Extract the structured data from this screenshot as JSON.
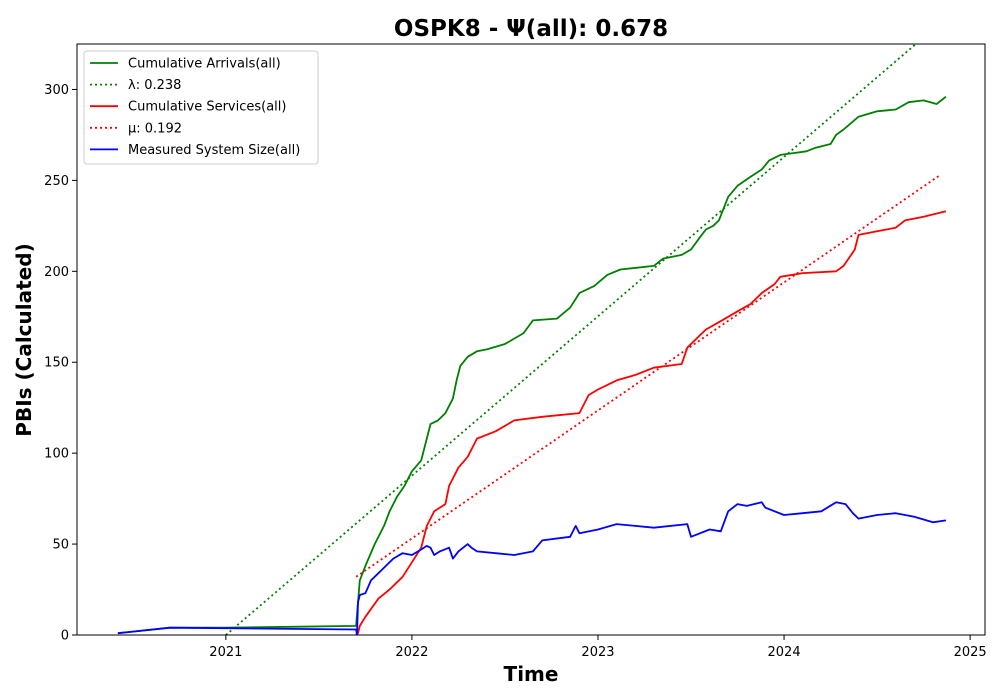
{
  "chart_data": {
    "type": "line",
    "title": "OSPK8 -  Ψ(all): 0.678",
    "xlabel": "Time",
    "ylabel": "PBIs (Calculated)",
    "xlim": [
      2020.2,
      2025.08
    ],
    "ylim": [
      0,
      325
    ],
    "x_ticks": [
      2021,
      2022,
      2023,
      2024,
      2025
    ],
    "x_tick_labels": [
      "2021",
      "2022",
      "2023",
      "2024",
      "2025"
    ],
    "y_ticks": [
      0,
      50,
      100,
      150,
      200,
      250,
      300
    ],
    "y_tick_labels": [
      "0",
      "50",
      "100",
      "150",
      "200",
      "250",
      "300"
    ],
    "legend_position": "upper-left",
    "grid": false,
    "series": [
      {
        "name": "Cumulative Arrivals(all)",
        "color": "#008000",
        "style": "solid",
        "points": [
          [
            2020.42,
            1
          ],
          [
            2020.7,
            4
          ],
          [
            2021.0,
            4
          ],
          [
            2021.7,
            5
          ],
          [
            2021.71,
            18
          ],
          [
            2021.72,
            30
          ],
          [
            2021.75,
            38
          ],
          [
            2021.8,
            50
          ],
          [
            2021.85,
            60
          ],
          [
            2021.88,
            68
          ],
          [
            2021.92,
            76
          ],
          [
            2021.96,
            82
          ],
          [
            2022.0,
            90
          ],
          [
            2022.05,
            96
          ],
          [
            2022.08,
            108
          ],
          [
            2022.1,
            116
          ],
          [
            2022.14,
            118
          ],
          [
            2022.18,
            122
          ],
          [
            2022.22,
            130
          ],
          [
            2022.24,
            140
          ],
          [
            2022.26,
            148
          ],
          [
            2022.3,
            153
          ],
          [
            2022.35,
            156
          ],
          [
            2022.4,
            157
          ],
          [
            2022.5,
            160
          ],
          [
            2022.6,
            166
          ],
          [
            2022.65,
            173
          ],
          [
            2022.78,
            174
          ],
          [
            2022.85,
            180
          ],
          [
            2022.9,
            188
          ],
          [
            2022.98,
            192
          ],
          [
            2023.05,
            198
          ],
          [
            2023.12,
            201
          ],
          [
            2023.3,
            203
          ],
          [
            2023.35,
            207
          ],
          [
            2023.45,
            209
          ],
          [
            2023.5,
            212
          ],
          [
            2023.55,
            219
          ],
          [
            2023.58,
            223
          ],
          [
            2023.62,
            225
          ],
          [
            2023.65,
            228
          ],
          [
            2023.7,
            241
          ],
          [
            2023.75,
            247
          ],
          [
            2023.82,
            252
          ],
          [
            2023.88,
            256
          ],
          [
            2023.92,
            261
          ],
          [
            2023.98,
            264
          ],
          [
            2024.05,
            265
          ],
          [
            2024.12,
            266
          ],
          [
            2024.17,
            268
          ],
          [
            2024.25,
            270
          ],
          [
            2024.28,
            275
          ],
          [
            2024.32,
            278
          ],
          [
            2024.4,
            285
          ],
          [
            2024.5,
            288
          ],
          [
            2024.6,
            289
          ],
          [
            2024.67,
            293
          ],
          [
            2024.75,
            294
          ],
          [
            2024.82,
            292
          ],
          [
            2024.87,
            296
          ]
        ]
      },
      {
        "name": "λ: 0.238",
        "color": "#008000",
        "style": "dotted",
        "points": [
          [
            2021.0,
            0
          ],
          [
            2024.72,
            326
          ]
        ]
      },
      {
        "name": "Cumulative Services(all)",
        "color": "#ff0000",
        "style": "solid",
        "points": [
          [
            2021.7,
            0
          ],
          [
            2021.71,
            1
          ],
          [
            2021.72,
            5
          ],
          [
            2021.75,
            10
          ],
          [
            2021.82,
            20
          ],
          [
            2021.88,
            25
          ],
          [
            2021.95,
            32
          ],
          [
            2022.0,
            40
          ],
          [
            2022.05,
            48
          ],
          [
            2022.08,
            60
          ],
          [
            2022.12,
            68
          ],
          [
            2022.18,
            72
          ],
          [
            2022.2,
            82
          ],
          [
            2022.25,
            92
          ],
          [
            2022.3,
            98
          ],
          [
            2022.35,
            108
          ],
          [
            2022.45,
            112
          ],
          [
            2022.55,
            118
          ],
          [
            2022.7,
            120
          ],
          [
            2022.9,
            122
          ],
          [
            2022.95,
            132
          ],
          [
            2023.0,
            135
          ],
          [
            2023.1,
            140
          ],
          [
            2023.2,
            143
          ],
          [
            2023.3,
            147
          ],
          [
            2023.45,
            149
          ],
          [
            2023.48,
            158
          ],
          [
            2023.52,
            162
          ],
          [
            2023.58,
            168
          ],
          [
            2023.65,
            172
          ],
          [
            2023.7,
            175
          ],
          [
            2023.75,
            178
          ],
          [
            2023.82,
            182
          ],
          [
            2023.88,
            188
          ],
          [
            2023.95,
            193
          ],
          [
            2023.98,
            197
          ],
          [
            2024.1,
            199
          ],
          [
            2024.28,
            200
          ],
          [
            2024.32,
            203
          ],
          [
            2024.38,
            212
          ],
          [
            2024.4,
            220
          ],
          [
            2024.5,
            222
          ],
          [
            2024.6,
            224
          ],
          [
            2024.65,
            228
          ],
          [
            2024.75,
            230
          ],
          [
            2024.87,
            233
          ]
        ]
      },
      {
        "name": "μ: 0.192",
        "color": "#ff0000",
        "style": "dotted",
        "points": [
          [
            2021.7,
            32
          ],
          [
            2024.84,
            253
          ]
        ]
      },
      {
        "name": "Measured System Size(all)",
        "color": "#0000ff",
        "style": "solid",
        "points": [
          [
            2020.42,
            1
          ],
          [
            2020.7,
            4
          ],
          [
            2021.7,
            3
          ],
          [
            2021.705,
            0
          ],
          [
            2021.71,
            18
          ],
          [
            2021.72,
            22
          ],
          [
            2021.75,
            23
          ],
          [
            2021.78,
            30
          ],
          [
            2021.82,
            34
          ],
          [
            2021.86,
            38
          ],
          [
            2021.9,
            42
          ],
          [
            2021.95,
            45
          ],
          [
            2022.0,
            44
          ],
          [
            2022.05,
            47
          ],
          [
            2022.08,
            49
          ],
          [
            2022.1,
            48
          ],
          [
            2022.12,
            44
          ],
          [
            2022.15,
            46
          ],
          [
            2022.2,
            48
          ],
          [
            2022.22,
            42
          ],
          [
            2022.25,
            46
          ],
          [
            2022.3,
            50
          ],
          [
            2022.32,
            48
          ],
          [
            2022.35,
            46
          ],
          [
            2022.45,
            45
          ],
          [
            2022.55,
            44
          ],
          [
            2022.65,
            46
          ],
          [
            2022.7,
            52
          ],
          [
            2022.85,
            54
          ],
          [
            2022.88,
            60
          ],
          [
            2022.9,
            56
          ],
          [
            2023.0,
            58
          ],
          [
            2023.1,
            61
          ],
          [
            2023.2,
            60
          ],
          [
            2023.3,
            59
          ],
          [
            2023.48,
            61
          ],
          [
            2023.5,
            54
          ],
          [
            2023.6,
            58
          ],
          [
            2023.66,
            57
          ],
          [
            2023.7,
            68
          ],
          [
            2023.75,
            72
          ],
          [
            2023.8,
            71
          ],
          [
            2023.88,
            73
          ],
          [
            2023.9,
            70
          ],
          [
            2024.0,
            66
          ],
          [
            2024.1,
            67
          ],
          [
            2024.2,
            68
          ],
          [
            2024.28,
            73
          ],
          [
            2024.33,
            72
          ],
          [
            2024.37,
            67
          ],
          [
            2024.4,
            64
          ],
          [
            2024.5,
            66
          ],
          [
            2024.6,
            67
          ],
          [
            2024.7,
            65
          ],
          [
            2024.8,
            62
          ],
          [
            2024.87,
            63
          ]
        ]
      }
    ]
  }
}
